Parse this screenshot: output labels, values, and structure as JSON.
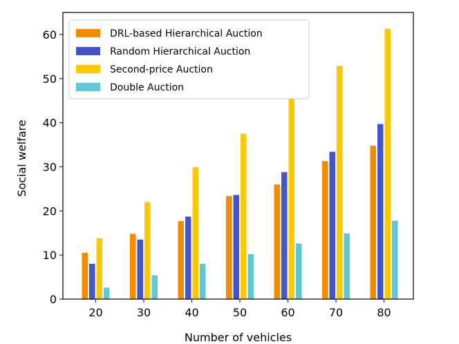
{
  "chart_data": {
    "type": "bar",
    "title": "",
    "xlabel": "Number of vehicles",
    "ylabel": "Social welfare",
    "categories": [
      "20",
      "30",
      "40",
      "50",
      "60",
      "70",
      "80"
    ],
    "ylim": [
      0,
      65
    ],
    "yticks": [
      0,
      10,
      20,
      30,
      40,
      50,
      60
    ],
    "grid": false,
    "legend_position": "top-left",
    "series": [
      {
        "name": "DRL-based Hierarchical Auction",
        "color": "#f58a00",
        "values": [
          10.5,
          14.8,
          17.7,
          23.4,
          26.0,
          31.3,
          34.8
        ]
      },
      {
        "name": "Random Hierarchical Auction",
        "color": "#4455cc",
        "values": [
          8.0,
          13.5,
          18.7,
          23.6,
          28.8,
          33.4,
          39.7
        ]
      },
      {
        "name": "Second-price Auction",
        "color": "#ffc800",
        "values": [
          13.8,
          22.0,
          29.9,
          37.5,
          46.0,
          52.9,
          61.3
        ]
      },
      {
        "name": "Double Auction",
        "color": "#5ec8d6",
        "values": [
          2.6,
          5.4,
          8.0,
          10.2,
          12.6,
          14.9,
          17.8
        ]
      }
    ]
  }
}
